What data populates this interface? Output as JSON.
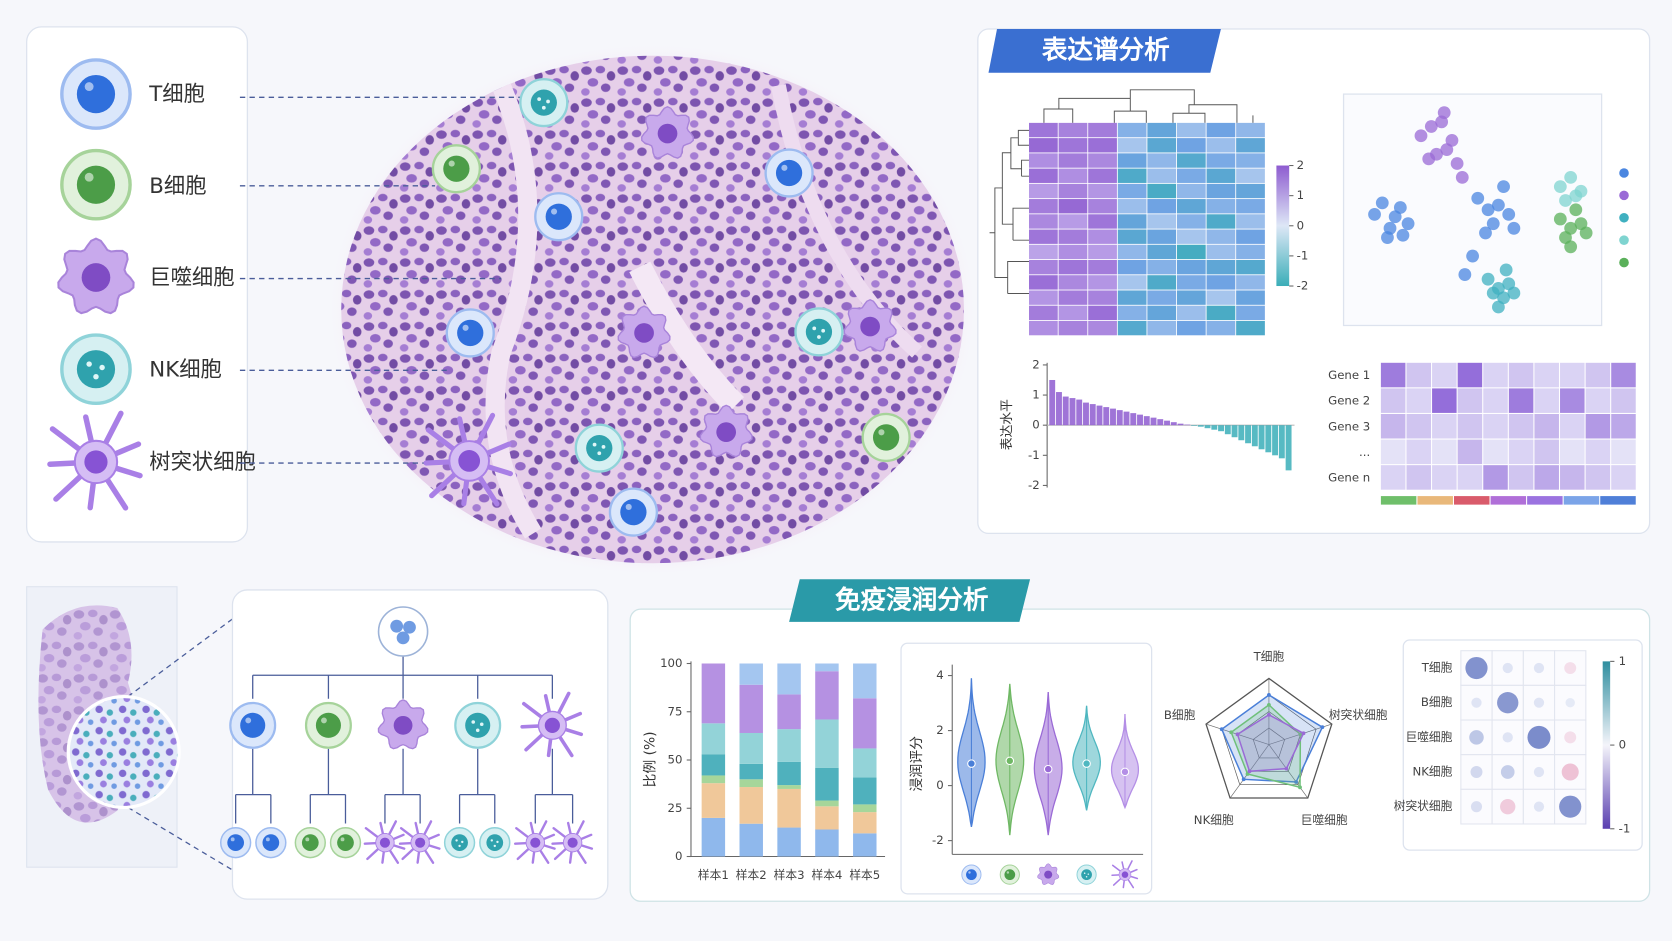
{
  "legend": [
    "T细胞",
    "B细胞",
    "巨噬细胞",
    "NK细胞",
    "树突状细胞"
  ],
  "panels": [
    "表达谱分析",
    "免疫浸润分析"
  ],
  "chart_data": [
    {
      "type": "heatmap",
      "clim": [
        -2,
        2
      ],
      "colorbar_ticks": [
        2,
        1,
        0,
        -1,
        -2
      ],
      "values": [
        [
          1.6,
          1.4,
          1.5,
          -0.8,
          -1.2,
          -0.6,
          -1.0,
          -0.7
        ],
        [
          1.8,
          1.6,
          1.7,
          -0.5,
          -1.4,
          -1.0,
          -0.6,
          -1.3
        ],
        [
          1.2,
          1.5,
          1.3,
          -1.1,
          -0.7,
          -1.5,
          -0.9,
          -0.8
        ],
        [
          1.7,
          1.2,
          1.6,
          -1.6,
          -0.6,
          -0.9,
          -1.4,
          -0.5
        ],
        [
          1.0,
          1.4,
          1.1,
          -0.9,
          -1.7,
          -0.7,
          -1.1,
          -1.2
        ],
        [
          1.5,
          1.8,
          1.4,
          -0.6,
          -1.0,
          -1.3,
          -0.8,
          -0.9
        ],
        [
          1.3,
          1.0,
          1.6,
          -1.2,
          -0.5,
          -0.8,
          -1.6,
          -0.6
        ],
        [
          1.6,
          1.5,
          1.2,
          -1.4,
          -1.1,
          -0.5,
          -0.7,
          -1.0
        ],
        [
          0.9,
          1.2,
          1.0,
          -0.7,
          -1.3,
          -1.8,
          -0.6,
          -0.8
        ],
        [
          1.4,
          1.6,
          1.5,
          -1.0,
          -0.8,
          -1.1,
          -1.3,
          -1.5
        ],
        [
          1.7,
          1.3,
          1.1,
          -0.5,
          -1.6,
          -0.9,
          -1.0,
          -0.7
        ],
        [
          1.1,
          1.5,
          1.4,
          -1.3,
          -0.9,
          -1.2,
          -0.5,
          -1.1
        ],
        [
          1.5,
          1.1,
          1.7,
          -0.8,
          -1.2,
          -0.6,
          -1.7,
          -0.9
        ],
        [
          1.2,
          1.4,
          1.3,
          -1.5,
          -0.7,
          -1.0,
          -0.8,
          -1.6
        ]
      ]
    },
    {
      "type": "scatter",
      "series": [
        {
          "color": "#4a86e0",
          "x": [
            12,
            15,
            18,
            20,
            22,
            25,
            17,
            23,
            52,
            56,
            60,
            64,
            58,
            62,
            55,
            66,
            50,
            47
          ],
          "y": [
            52,
            47,
            58,
            53,
            49,
            56,
            62,
            61,
            45,
            50,
            48,
            52,
            56,
            40,
            60,
            58,
            70,
            78
          ]
        },
        {
          "color": "#9a6ad6",
          "x": [
            30,
            34,
            38,
            42,
            36,
            40,
            33,
            44,
            39,
            46
          ],
          "y": [
            18,
            14,
            12,
            20,
            26,
            24,
            28,
            30,
            8,
            36
          ]
        },
        {
          "color": "#3fb0c0",
          "x": [
            56,
            60,
            64,
            62,
            58,
            66,
            60,
            63
          ],
          "y": [
            80,
            84,
            82,
            88,
            86,
            86,
            92,
            76
          ]
        },
        {
          "color": "#7fd4d0",
          "x": [
            84,
            88,
            92,
            86,
            90
          ],
          "y": [
            40,
            36,
            42,
            46,
            44
          ]
        },
        {
          "color": "#5ab05a",
          "x": [
            84,
            88,
            92,
            86,
            90,
            94,
            88
          ],
          "y": [
            54,
            58,
            56,
            62,
            50,
            60,
            66
          ]
        }
      ]
    },
    {
      "type": "bar",
      "ylabel": "表达水平",
      "ylim": [
        -2,
        2
      ],
      "yticks": [
        2,
        1,
        0,
        -1,
        -2
      ],
      "colors": {
        "positive": "#8e5cd0",
        "negative": "#3aaeb8"
      },
      "values": [
        1.5,
        1.1,
        0.95,
        0.9,
        0.85,
        0.75,
        0.7,
        0.65,
        0.6,
        0.55,
        0.5,
        0.45,
        0.4,
        0.35,
        0.3,
        0.25,
        0.2,
        0.15,
        0.1,
        0.05,
        0.02,
        -0.02,
        -0.05,
        -0.1,
        -0.15,
        -0.2,
        -0.3,
        -0.4,
        -0.5,
        -0.6,
        -0.7,
        -0.8,
        -0.9,
        -1.0,
        -1.1,
        -1.5
      ]
    },
    {
      "type": "heatmap",
      "rows": [
        "Gene 1",
        "Gene 2",
        "Gene 3",
        "...",
        "Gene n"
      ],
      "color": "#8a5fd6",
      "values": [
        [
          0.8,
          0.3,
          0.2,
          0.9,
          0.2,
          0.3,
          0.2,
          0.2,
          0.3,
          0.7
        ],
        [
          0.3,
          0.2,
          0.9,
          0.3,
          0.2,
          0.8,
          0.2,
          0.7,
          0.2,
          0.3
        ],
        [
          0.4,
          0.3,
          0.2,
          0.3,
          0.2,
          0.3,
          0.4,
          0.2,
          0.6,
          0.5
        ],
        [
          0.1,
          0.2,
          0.1,
          0.4,
          0.1,
          0.2,
          0.3,
          0.1,
          0.2,
          0.1
        ],
        [
          0.2,
          0.3,
          0.2,
          0.2,
          0.6,
          0.3,
          0.5,
          0.4,
          0.3,
          0.2
        ]
      ]
    },
    {
      "type": "stacked_bar",
      "ylabel": "比例 (%)",
      "ylim": [
        0,
        100
      ],
      "yticks": [
        0,
        25,
        50,
        75,
        100
      ],
      "categories": [
        "样本1",
        "样本2",
        "样本3",
        "样本4",
        "样本5"
      ],
      "series": [
        {
          "color": "#8fb8ec",
          "values": [
            20,
            17,
            15,
            14,
            12
          ]
        },
        {
          "color": "#f0c89a",
          "values": [
            18,
            19,
            20,
            12,
            11
          ]
        },
        {
          "color": "#a6d69a",
          "values": [
            4,
            4,
            2,
            3,
            4
          ]
        },
        {
          "color": "#4fb1bd",
          "values": [
            11,
            8,
            12,
            17,
            14
          ]
        },
        {
          "color": "#93d3d8",
          "values": [
            16,
            16,
            17,
            25,
            15
          ]
        },
        {
          "color": "#b591e2",
          "values": [
            31,
            25,
            18,
            25,
            26
          ]
        },
        {
          "color": "#a4c6f0",
          "values": [
            0,
            11,
            16,
            4,
            18
          ]
        }
      ]
    },
    {
      "type": "violin",
      "ylabel": "浸润评分",
      "ylim": [
        -2.5,
        4.4
      ],
      "yticks": [
        -2,
        0,
        2,
        4
      ],
      "series": [
        {
          "color": "#4a7fd8",
          "mean": 0.8,
          "range": [
            -1.5,
            3.9
          ]
        },
        {
          "color": "#6fb864",
          "mean": 0.9,
          "range": [
            -1.8,
            3.7
          ]
        },
        {
          "color": "#9a6ad6",
          "mean": 0.6,
          "range": [
            -1.8,
            3.4
          ]
        },
        {
          "color": "#4fb7c0",
          "mean": 0.8,
          "range": [
            -0.9,
            2.9
          ]
        },
        {
          "color": "#b48fe6",
          "mean": 0.5,
          "range": [
            -0.8,
            2.6
          ]
        }
      ]
    },
    {
      "type": "radar",
      "axes": [
        "T细胞",
        "树突状细胞",
        "巨噬细胞",
        "NK细胞",
        "B细胞"
      ],
      "series": [
        {
          "color": "#4a7fd8",
          "values": [
            0.75,
            0.85,
            0.7,
            0.65,
            0.75
          ]
        },
        {
          "color": "#6fc07a",
          "values": [
            0.6,
            0.5,
            0.8,
            0.55,
            0.6
          ]
        },
        {
          "color": "#9a6ad6",
          "values": [
            0.45,
            0.55,
            0.45,
            0.5,
            0.5
          ]
        }
      ]
    },
    {
      "type": "bubble_matrix",
      "rows": [
        "T细胞",
        "B细胞",
        "巨噬细胞",
        "NK细胞",
        "树突状细胞"
      ],
      "clim": [
        -1,
        1
      ],
      "colorbar_ticks": [
        1,
        0,
        -1
      ],
      "values": [
        [
          0.8,
          0.1,
          0.1,
          -0.2
        ],
        [
          0.1,
          0.75,
          0.1,
          0.05
        ],
        [
          0.35,
          0.1,
          0.85,
          -0.2
        ],
        [
          0.2,
          0.3,
          0.1,
          -0.5
        ],
        [
          0.15,
          -0.4,
          0.1,
          0.8
        ]
      ]
    }
  ]
}
